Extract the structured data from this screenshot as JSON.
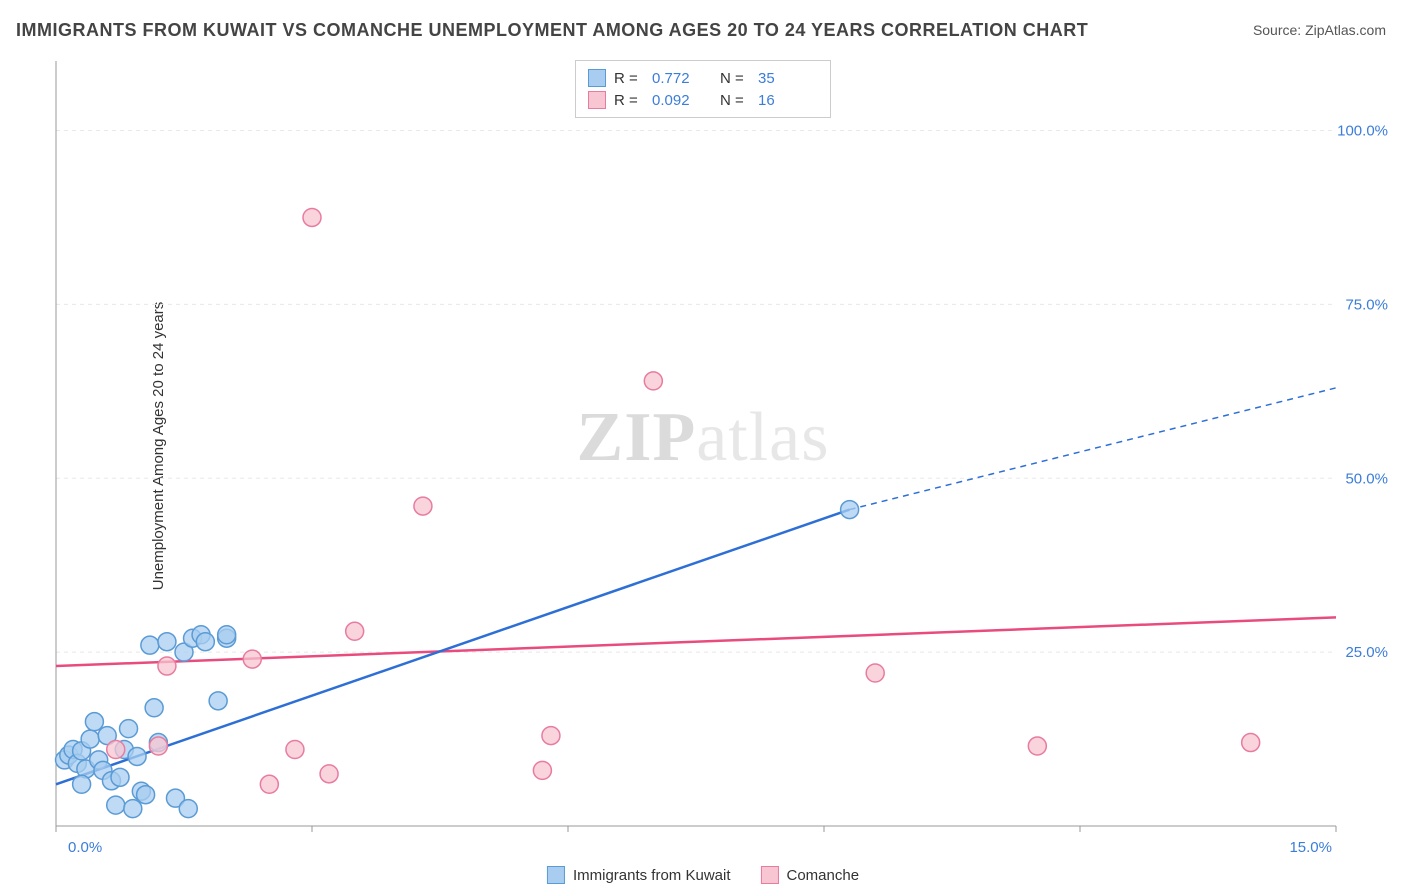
{
  "title": "IMMIGRANTS FROM KUWAIT VS COMANCHE UNEMPLOYMENT AMONG AGES 20 TO 24 YEARS CORRELATION CHART",
  "source_label": "Source: ",
  "source_value": "ZipAtlas.com",
  "y_axis_label": "Unemployment Among Ages 20 to 24 years",
  "watermark_bold": "ZIP",
  "watermark_thin": "atlas",
  "chart": {
    "type": "scatter",
    "xlim": [
      0,
      15
    ],
    "ylim": [
      0,
      110
    ],
    "x_ticks": [
      0,
      3,
      6,
      9,
      12,
      15
    ],
    "x_tick_labels": {
      "0": "0.0%",
      "15": "15.0%"
    },
    "y_ticks": [
      25,
      50,
      75,
      100
    ],
    "y_tick_labels": {
      "25": "25.0%",
      "50": "50.0%",
      "75": "75.0%",
      "100": "100.0%"
    },
    "grid_color": "#e8e8e8",
    "axis_color": "#999999",
    "tick_label_color": "#3b7dd8",
    "background_color": "#ffffff",
    "marker_radius": 9,
    "marker_stroke_width": 1.5,
    "line_width": 2.5,
    "series": [
      {
        "name": "Immigrants from Kuwait",
        "fill_color": "#a8cdf0",
        "stroke_color": "#5b9bd5",
        "line_color": "#2e6fd6",
        "r_value": "0.772",
        "n_value": "35",
        "trend": {
          "x1": 0,
          "y1": 6,
          "x2": 9.3,
          "y2": 45.5,
          "dash_x2": 15,
          "dash_y2": 63
        },
        "points": [
          [
            0.1,
            9.5
          ],
          [
            0.15,
            10.2
          ],
          [
            0.2,
            11
          ],
          [
            0.25,
            9
          ],
          [
            0.3,
            10.8
          ],
          [
            0.35,
            8.2
          ],
          [
            0.4,
            12.5
          ],
          [
            0.45,
            15
          ],
          [
            0.5,
            9.5
          ],
          [
            0.55,
            8
          ],
          [
            0.6,
            13
          ],
          [
            0.65,
            6.5
          ],
          [
            0.7,
            3
          ],
          [
            0.75,
            7
          ],
          [
            0.8,
            11
          ],
          [
            0.85,
            14
          ],
          [
            0.9,
            2.5
          ],
          [
            0.95,
            10
          ],
          [
            1.0,
            5
          ],
          [
            1.05,
            4.5
          ],
          [
            1.1,
            26
          ],
          [
            1.15,
            17
          ],
          [
            1.2,
            12
          ],
          [
            1.3,
            26.5
          ],
          [
            1.4,
            4
          ],
          [
            1.5,
            25
          ],
          [
            1.55,
            2.5
          ],
          [
            1.6,
            27
          ],
          [
            1.7,
            27.5
          ],
          [
            1.75,
            26.5
          ],
          [
            1.9,
            18
          ],
          [
            2.0,
            27
          ],
          [
            2.0,
            27.5
          ],
          [
            9.3,
            45.5
          ],
          [
            0.3,
            6
          ]
        ]
      },
      {
        "name": "Comanche",
        "fill_color": "#f7c6d2",
        "stroke_color": "#e87ca0",
        "line_color": "#e94b7e",
        "r_value": "0.092",
        "n_value": "16",
        "trend": {
          "x1": 0,
          "y1": 23,
          "x2": 15,
          "y2": 30
        },
        "points": [
          [
            0.7,
            11
          ],
          [
            1.2,
            11.5
          ],
          [
            1.3,
            23
          ],
          [
            2.3,
            24
          ],
          [
            2.5,
            6
          ],
          [
            3.0,
            87.5
          ],
          [
            3.2,
            7.5
          ],
          [
            3.5,
            28
          ],
          [
            4.3,
            46
          ],
          [
            5.7,
            8
          ],
          [
            5.8,
            13
          ],
          [
            7.0,
            64
          ],
          [
            9.6,
            22
          ],
          [
            11.5,
            11.5
          ],
          [
            14.0,
            12
          ],
          [
            2.8,
            11
          ]
        ]
      }
    ]
  },
  "legend_top": {
    "r_label": "R  =",
    "n_label": "N  ="
  },
  "legend_bottom": [
    {
      "label": "Immigrants from Kuwait",
      "fill": "#a8cdf0",
      "stroke": "#5b9bd5"
    },
    {
      "label": "Comanche",
      "fill": "#f7c6d2",
      "stroke": "#e87ca0"
    }
  ]
}
